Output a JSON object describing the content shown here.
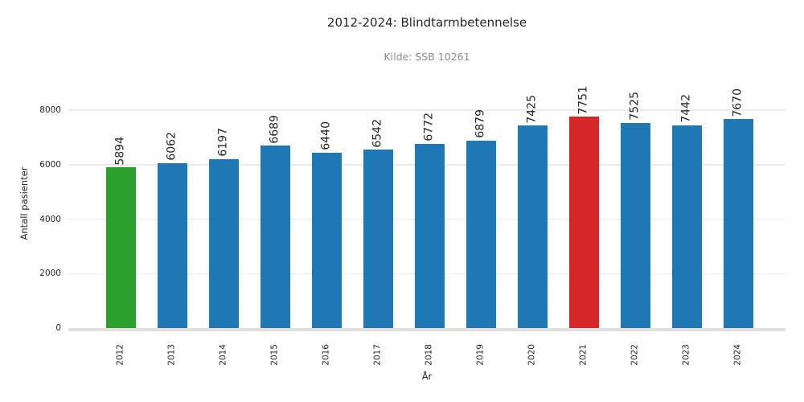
{
  "chart_data": {
    "type": "bar",
    "title": "2012-2024: Blindtarmbetennelse",
    "subtitle": "Kilde: SSB 10261",
    "xlabel": "År",
    "ylabel": "Antall pasienter",
    "categories": [
      "2012",
      "2013",
      "2014",
      "2015",
      "2016",
      "2017",
      "2018",
      "2019",
      "2020",
      "2021",
      "2022",
      "2023",
      "2024"
    ],
    "values": [
      5894,
      6062,
      6197,
      6689,
      6440,
      6542,
      6772,
      6879,
      7425,
      7751,
      7525,
      7442,
      7670
    ],
    "bar_colors": [
      "#2ca02c",
      "#1f77b4",
      "#1f77b4",
      "#1f77b4",
      "#1f77b4",
      "#1f77b4",
      "#1f77b4",
      "#1f77b4",
      "#1f77b4",
      "#d62728",
      "#1f77b4",
      "#1f77b4",
      "#1f77b4"
    ],
    "yticks": [
      0,
      2000,
      4000,
      6000,
      8000
    ],
    "ylim": [
      0,
      8800
    ],
    "grid": true,
    "legend_position": "none",
    "value_labels": true,
    "value_label_rotation": 90,
    "xtick_rotation": 90,
    "colors": {
      "bar_default": "#1f77b4",
      "bar_first": "#2ca02c",
      "bar_max": "#d62728",
      "gridline": "#ebebeb",
      "axis_line": "#e0e0e0",
      "title_text": "#262626",
      "subtitle_text": "#8c8c8c",
      "tick_text": "#262626"
    }
  }
}
